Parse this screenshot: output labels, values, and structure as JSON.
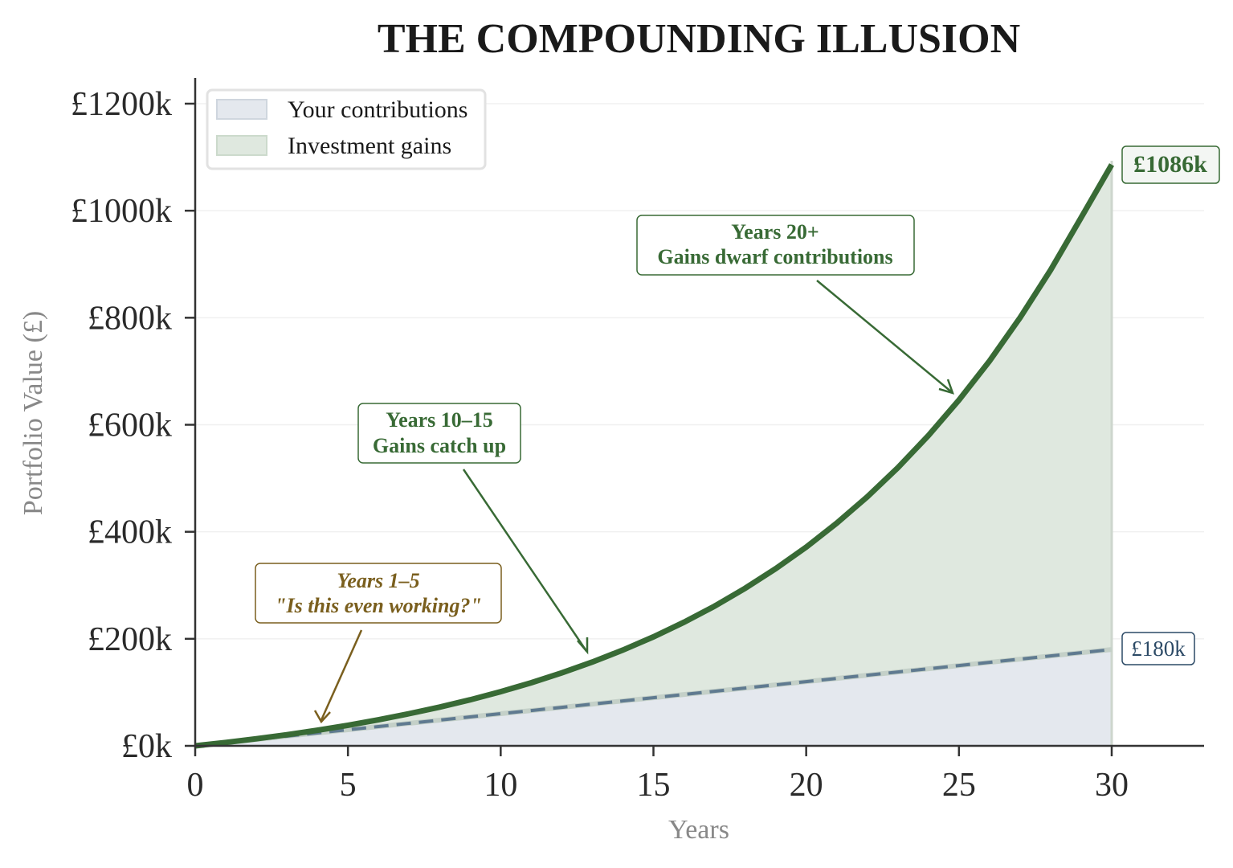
{
  "chart_data": {
    "type": "area",
    "title": "THE COMPOUNDING ILLUSION",
    "xlabel": "Years",
    "ylabel": "Portfolio Value (£)",
    "xlim": [
      0,
      33
    ],
    "ylim": [
      0,
      1250
    ],
    "x_ticks": [
      0,
      5,
      10,
      15,
      20,
      25,
      30
    ],
    "y_ticks": [
      0,
      200,
      400,
      600,
      800,
      1000,
      1200
    ],
    "y_tick_labels": [
      "£0k",
      "£200k",
      "£400k",
      "£600k",
      "£800k",
      "£1000k",
      "£1200k"
    ],
    "grid": "horizontal, faint",
    "legend_position": "upper left",
    "x": [
      0,
      1,
      2,
      3,
      4,
      5,
      6,
      7,
      8,
      9,
      10,
      11,
      12,
      13,
      14,
      15,
      16,
      17,
      18,
      19,
      20,
      21,
      22,
      23,
      24,
      25,
      26,
      27,
      28,
      29,
      30
    ],
    "series": [
      {
        "name": "Your contributions",
        "unit": "£k",
        "color": "#5f7a90",
        "fill": "#e4e8ee",
        "style": "dashed",
        "values": [
          0,
          6,
          12,
          18,
          24,
          30,
          36,
          42,
          48,
          54,
          60,
          66,
          72,
          78,
          84,
          90,
          96,
          102,
          108,
          114,
          120,
          126,
          132,
          138,
          144,
          150,
          156,
          162,
          168,
          174,
          180
        ]
      },
      {
        "name": "Investment gains",
        "unit": "£k",
        "color": "#386a35",
        "fill": "#dfe8df",
        "style": "solid",
        "values": [
          0,
          6.3,
          13.2,
          20.8,
          29.2,
          38.5,
          48.7,
          60.0,
          72.4,
          86.1,
          101.2,
          117.9,
          136.3,
          156.6,
          179.0,
          203.7,
          231.0,
          261.1,
          294.3,
          331.0,
          371.4,
          416.1,
          465.4,
          519.8,
          579.8,
          646.1,
          719.2,
          800.0,
          889.1,
          987.4,
          1086
        ]
      }
    ],
    "annotations": [
      {
        "text": [
          "Years 1–5",
          "\"Is this even working?\""
        ],
        "points_to_year": 4,
        "color": "#7a5f1e",
        "style": "bold italic"
      },
      {
        "text": [
          "Years 10–15",
          "Gains catch up"
        ],
        "points_to_year": 13,
        "color": "#386a35",
        "style": "bold"
      },
      {
        "text": [
          "Years 20+",
          "Gains dwarf contributions"
        ],
        "points_to_year": 25,
        "color": "#386a35",
        "style": "bold"
      }
    ],
    "end_labels": [
      {
        "text": "£1086k",
        "color": "#386a35"
      },
      {
        "text": "£180k",
        "color": "#2c4a66"
      }
    ]
  },
  "title": "THE COMPOUNDING ILLUSION",
  "xlabel": "Years",
  "ylabel": "Portfolio Value (£)",
  "legend": {
    "contrib": "Your contributions",
    "gains": "Investment gains"
  },
  "ann1": {
    "l1": "Years 1–5",
    "l2": "\"Is this even working?\""
  },
  "ann2": {
    "l1": "Years 10–15",
    "l2": "Gains catch up"
  },
  "ann3": {
    "l1": "Years 20+",
    "l2": "Gains dwarf contributions"
  },
  "end_total": "£1086k",
  "end_contrib": "£180k",
  "xticks": [
    "0",
    "5",
    "10",
    "15",
    "20",
    "25",
    "30"
  ],
  "yticks": [
    "£0k",
    "£200k",
    "£400k",
    "£600k",
    "£800k",
    "£1000k",
    "£1200k"
  ]
}
